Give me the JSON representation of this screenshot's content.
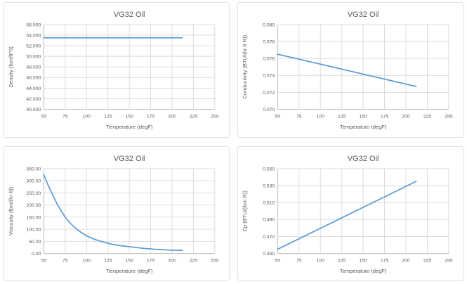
{
  "page": {
    "background": "#ffffff"
  },
  "theme": {
    "panel_border": "#e3e3e3",
    "panel_background": "#ffffff",
    "title_color": "#595959",
    "tick_color": "#595959",
    "label_color": "#595959",
    "grid_color": "#d9d9d9",
    "axis_color": "#bfbfbf",
    "line_color": "#5b9bd5"
  },
  "chart_data": [
    {
      "id": "density",
      "type": "line",
      "title": "VG32 Oil",
      "xlabel": "Temperature (degF)",
      "ylabel": "Density (lbm/ft^3)",
      "xlim": [
        50,
        250
      ],
      "xtick_step": 25,
      "x_decimals": 0,
      "ylim": [
        40,
        56
      ],
      "ytick_step": 2,
      "y_decimals": 3,
      "grid": true,
      "legend": "none",
      "series": [
        {
          "name": "Density",
          "x": [
            50,
            212
          ],
          "y": [
            53.5,
            53.5
          ]
        }
      ]
    },
    {
      "id": "conductivity",
      "type": "line",
      "title": "VG32 Oil",
      "xlabel": "Temperature (degF)",
      "ylabel": "Conductivity (BTU/(hr ft R))",
      "xlim": [
        50,
        250
      ],
      "xtick_step": 25,
      "x_decimals": 0,
      "ylim": [
        0.07,
        0.08
      ],
      "ytick_step": 0.002,
      "y_decimals": 3,
      "grid": true,
      "legend": "none",
      "series": [
        {
          "name": "Conductivity",
          "x": [
            50,
            212
          ],
          "y": [
            0.0765,
            0.0727
          ]
        }
      ]
    },
    {
      "id": "viscosity",
      "type": "line",
      "title": "VG32 Oil",
      "xlabel": "Temperature (degF)",
      "ylabel": "Viscosity (lbm/(hr ft))",
      "xlim": [
        50,
        250
      ],
      "xtick_step": 25,
      "x_decimals": 0,
      "ylim": [
        0,
        350
      ],
      "ytick_step": 50,
      "y_decimals": 2,
      "grid": true,
      "legend": "none",
      "series": [
        {
          "name": "Viscosity",
          "x": [
            50,
            55,
            60,
            65,
            70,
            75,
            80,
            85,
            90,
            95,
            100,
            105,
            110,
            115,
            120,
            125,
            130,
            135,
            140,
            145,
            150,
            155,
            160,
            165,
            170,
            175,
            180,
            185,
            190,
            195,
            200,
            205,
            212
          ],
          "y": [
            325,
            283,
            245,
            208,
            177,
            150,
            128,
            111,
            96,
            84,
            73,
            65,
            58,
            52,
            47,
            42,
            38,
            35,
            32,
            30,
            28,
            26,
            24,
            22,
            20.5,
            19,
            17.5,
            16.5,
            15.5,
            14.5,
            13.5,
            13,
            12.5
          ]
        }
      ]
    },
    {
      "id": "cp",
      "type": "line",
      "title": "VG32 Oil",
      "xlabel": "Temperature (degF)",
      "ylabel": "Cp (BTU/(lbm R))",
      "xlim": [
        50,
        250
      ],
      "xtick_step": 25,
      "x_decimals": 0,
      "ylim": [
        0.45,
        0.55
      ],
      "ytick_step": 0.02,
      "y_decimals": 3,
      "grid": true,
      "legend": "none",
      "series": [
        {
          "name": "Cp",
          "x": [
            50,
            212
          ],
          "y": [
            0.455,
            0.535
          ]
        }
      ]
    }
  ]
}
